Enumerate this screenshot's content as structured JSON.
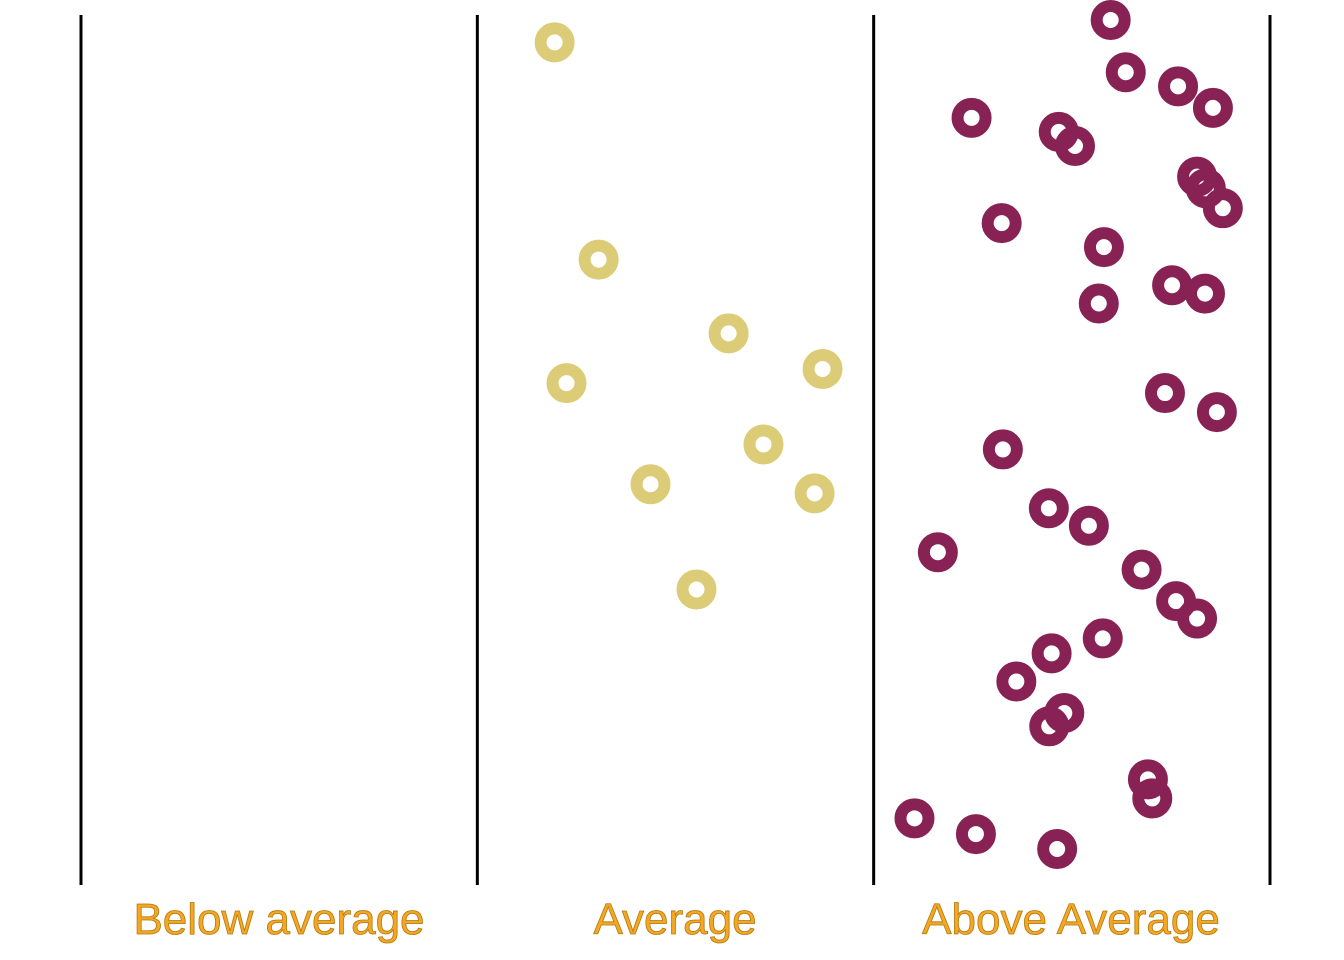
{
  "chart_data": {
    "type": "scatter",
    "title": "",
    "xlabel": "",
    "ylabel": "",
    "categories": [
      "Below average",
      "Average",
      "Above Average"
    ],
    "x_range": [
      0,
      3
    ],
    "y_range": [
      0,
      1
    ],
    "grid": false,
    "legend": "none",
    "label_color": "#f5a623",
    "series": [
      {
        "category": "Below average",
        "color": "#dccc77",
        "points": []
      },
      {
        "category": "Average",
        "color": "#dccc77",
        "points": [
          {
            "x": 1.195,
            "y": 0.973
          },
          {
            "x": 1.306,
            "y": 0.711
          },
          {
            "x": 1.634,
            "y": 0.622
          },
          {
            "x": 1.871,
            "y": 0.579
          },
          {
            "x": 1.225,
            "y": 0.562
          },
          {
            "x": 1.722,
            "y": 0.488
          },
          {
            "x": 1.437,
            "y": 0.44
          },
          {
            "x": 1.851,
            "y": 0.429
          },
          {
            "x": 1.553,
            "y": 0.313
          }
        ]
      },
      {
        "category": "Above Average",
        "color": "#882255",
        "points": [
          {
            "x": 2.598,
            "y": 1.0
          },
          {
            "x": 2.636,
            "y": 0.937
          },
          {
            "x": 2.768,
            "y": 0.92
          },
          {
            "x": 2.856,
            "y": 0.894
          },
          {
            "x": 2.247,
            "y": 0.882
          },
          {
            "x": 2.467,
            "y": 0.865
          },
          {
            "x": 2.508,
            "y": 0.848
          },
          {
            "x": 2.816,
            "y": 0.811
          },
          {
            "x": 2.838,
            "y": 0.797
          },
          {
            "x": 2.881,
            "y": 0.773
          },
          {
            "x": 2.323,
            "y": 0.755
          },
          {
            "x": 2.581,
            "y": 0.726
          },
          {
            "x": 2.753,
            "y": 0.68
          },
          {
            "x": 2.568,
            "y": 0.658
          },
          {
            "x": 2.836,
            "y": 0.67
          },
          {
            "x": 2.735,
            "y": 0.55
          },
          {
            "x": 2.866,
            "y": 0.527
          },
          {
            "x": 2.326,
            "y": 0.482
          },
          {
            "x": 2.442,
            "y": 0.411
          },
          {
            "x": 2.543,
            "y": 0.39
          },
          {
            "x": 2.162,
            "y": 0.358
          },
          {
            "x": 2.676,
            "y": 0.337
          },
          {
            "x": 2.763,
            "y": 0.299
          },
          {
            "x": 2.816,
            "y": 0.278
          },
          {
            "x": 2.578,
            "y": 0.254
          },
          {
            "x": 2.449,
            "y": 0.236
          },
          {
            "x": 2.36,
            "y": 0.202
          },
          {
            "x": 2.481,
            "y": 0.164
          },
          {
            "x": 2.443,
            "y": 0.148
          },
          {
            "x": 2.692,
            "y": 0.084
          },
          {
            "x": 2.703,
            "y": 0.061
          },
          {
            "x": 2.103,
            "y": 0.037
          },
          {
            "x": 2.258,
            "y": 0.018
          },
          {
            "x": 2.463,
            "y": 0.0
          }
        ]
      }
    ]
  }
}
